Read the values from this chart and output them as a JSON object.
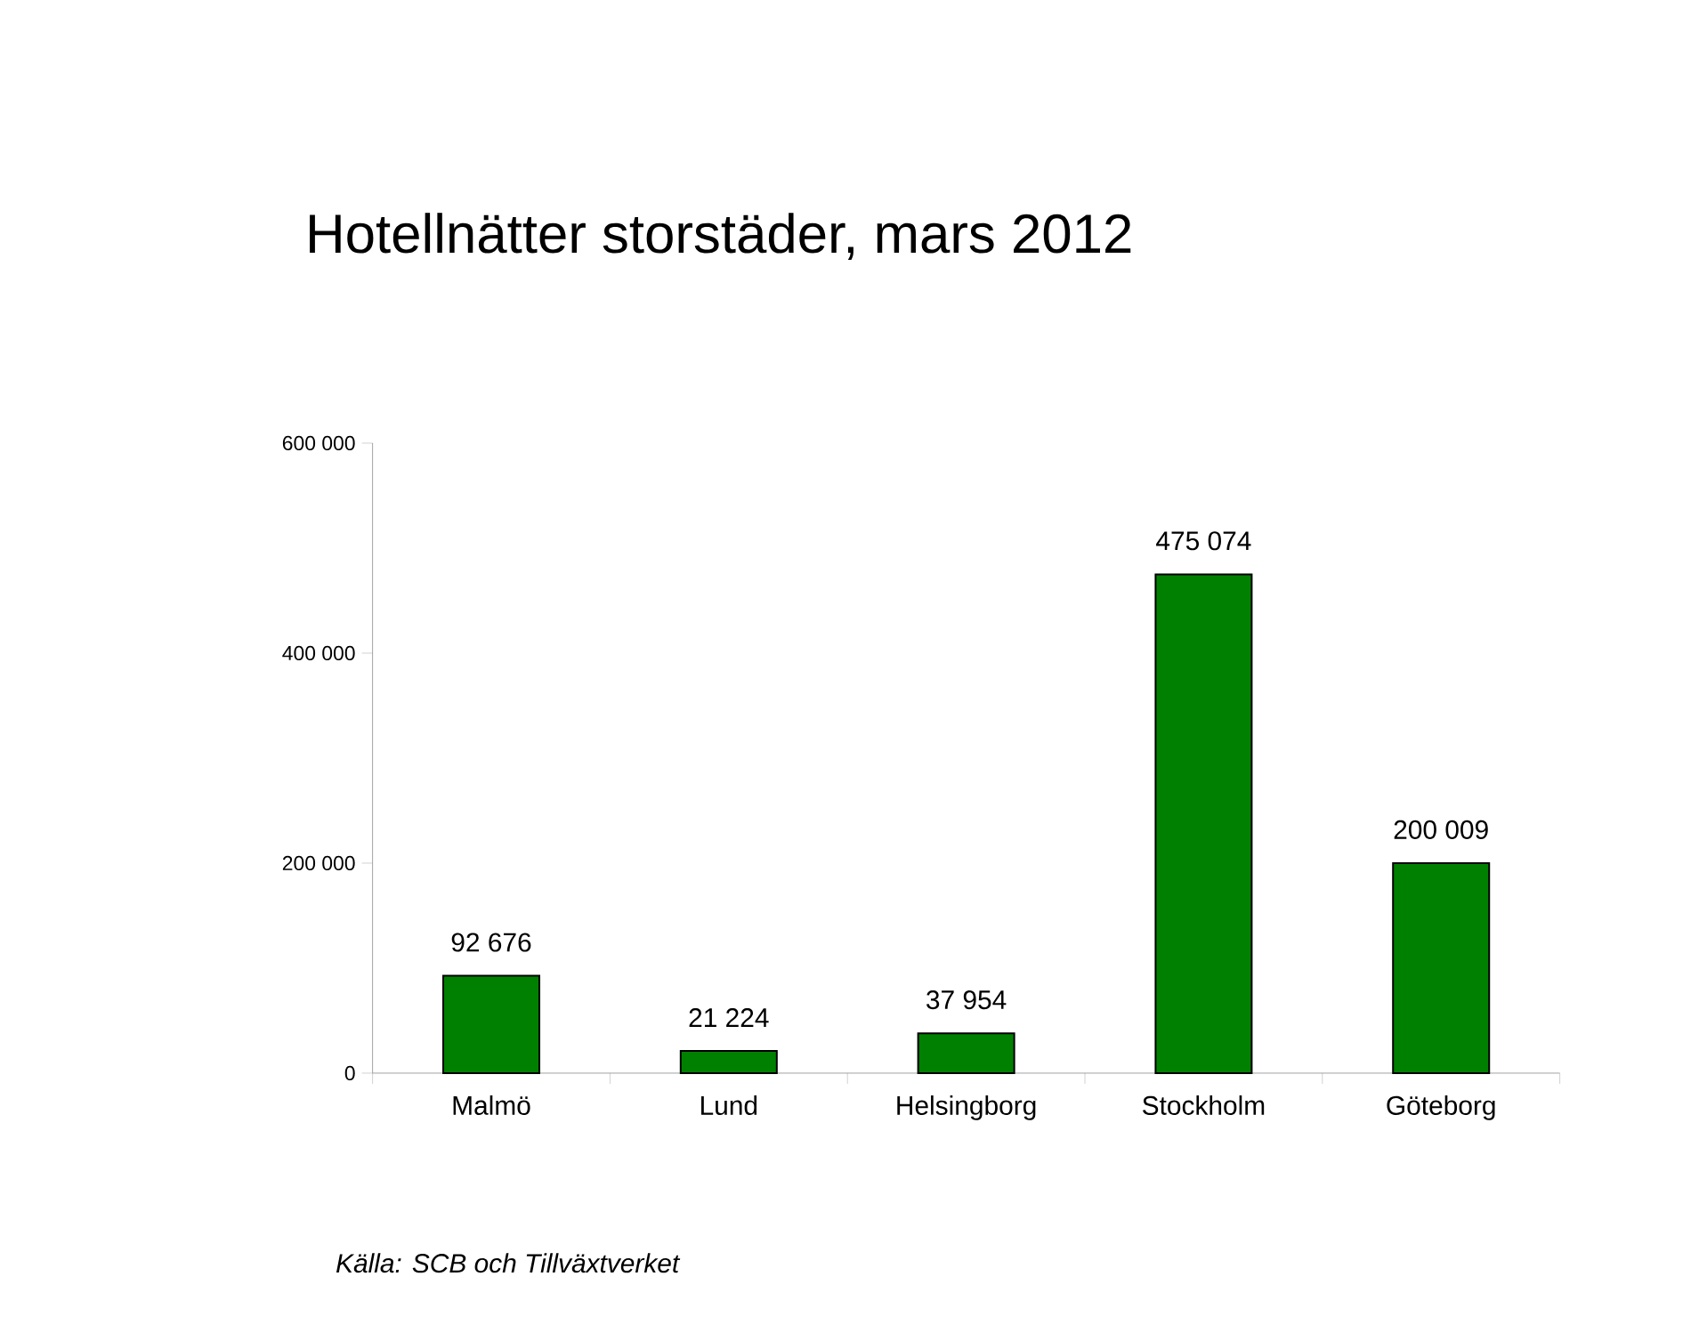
{
  "chart_data": {
    "type": "bar",
    "title": "Hotellnätter storstäder, mars 2012",
    "categories": [
      "Malmö",
      "Lund",
      "Helsingborg",
      "Stockholm",
      "Göteborg"
    ],
    "values": [
      92676,
      21224,
      37954,
      475074,
      200009
    ],
    "value_labels": [
      "92 676",
      "21 224",
      "37 954",
      "475 074",
      "200 009"
    ],
    "color": "#008000",
    "ylim": [
      0,
      600000
    ],
    "yticks": [
      0,
      {
        "value": 200000,
        "label": "200 000"
      },
      {
        "value": 400000,
        "label": "400 000"
      },
      {
        "value": 600000,
        "label": "600 000"
      }
    ],
    "annotations": [
      "Källa: SCB och Tillväxtverket"
    ]
  }
}
